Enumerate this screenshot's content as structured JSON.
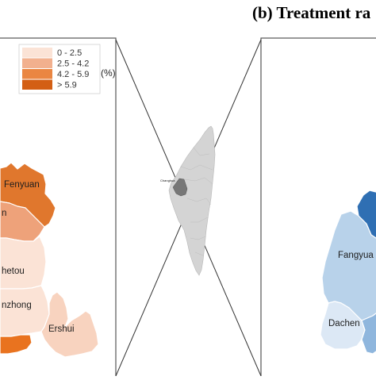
{
  "panel_b": {
    "title": "(b) Treatment ra"
  },
  "legend": {
    "unit": "(%)",
    "classes": [
      {
        "label": "0 - 2.5",
        "color": "#fbe3d6"
      },
      {
        "label": "2.5 - 4.2",
        "color": "#f2b08e"
      },
      {
        "label": "4.2 - 5.9",
        "color": "#ea8642"
      },
      {
        "label": "> 5.9",
        "color": "#d35f14"
      }
    ]
  },
  "map_a": {
    "regions": [
      {
        "label": "Fenyuan",
        "color": "#e0772d"
      },
      {
        "label": "n",
        "color": "#eea27a"
      },
      {
        "label": "hetou",
        "color": "#fbe3d6"
      },
      {
        "label": "nzhong",
        "color": "#fbe3d6"
      },
      {
        "label": "Ershui",
        "color": "#f8d3bf"
      },
      {
        "label": "",
        "color": "#e9731f"
      }
    ]
  },
  "inset": {
    "city_label": "Changhua",
    "island_color": "#d4d4d4",
    "highlight_color": "#777777"
  },
  "map_b": {
    "regions": [
      {
        "label": "Fangyua",
        "color": "#b8d2ea"
      },
      {
        "label": "Dachen",
        "color": "#dce8f5"
      },
      {
        "label": "",
        "color": "#2f6fb3"
      },
      {
        "label": "",
        "color": "#8fb6dd"
      }
    ]
  }
}
